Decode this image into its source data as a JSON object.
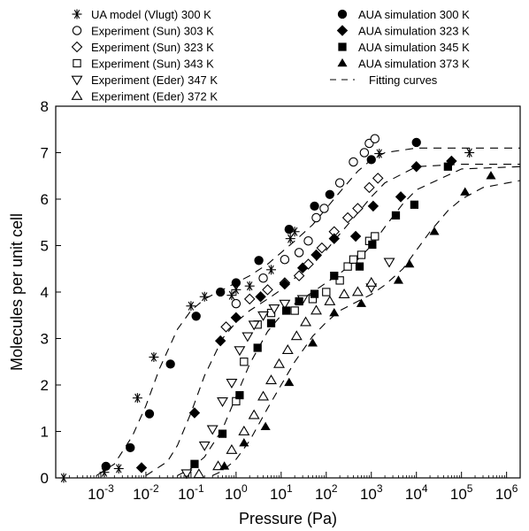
{
  "chart_data": {
    "type": "scatter",
    "xlabel": "Pressure (Pa)",
    "ylabel": "Molecules per unit cell",
    "xscale": "log",
    "xlim": [
      0.0001,
      2000000
    ],
    "ylim": [
      0,
      8
    ],
    "x_ticks": [
      {
        "value": 0.001,
        "base": "10",
        "exp": "-3"
      },
      {
        "value": 0.01,
        "base": "10",
        "exp": "-2"
      },
      {
        "value": 0.1,
        "base": "10",
        "exp": "-1"
      },
      {
        "value": 1,
        "base": "10",
        "exp": "0"
      },
      {
        "value": 10,
        "base": "10",
        "exp": "1"
      },
      {
        "value": 100,
        "base": "10",
        "exp": "2"
      },
      {
        "value": 1000,
        "base": "10",
        "exp": "3"
      },
      {
        "value": 10000,
        "base": "10",
        "exp": "4"
      },
      {
        "value": 100000,
        "base": "10",
        "exp": "5"
      },
      {
        "value": 1000000,
        "base": "10",
        "exp": "6"
      }
    ],
    "y_ticks": [
      0,
      1,
      2,
      3,
      4,
      5,
      6,
      7,
      8
    ],
    "grid": false,
    "legend_position": "top",
    "series": [
      {
        "name": "UA model (Vlugt) 300 K",
        "marker": "asterisk",
        "x": [
          0.00015,
          0.0012,
          0.0025,
          0.0065,
          0.015,
          0.1,
          0.2,
          0.8,
          1.0,
          2.0,
          6.0,
          16,
          20,
          1500,
          150000
        ],
        "y": [
          0.0,
          0.12,
          0.2,
          1.72,
          2.6,
          3.7,
          3.9,
          3.93,
          4.05,
          4.13,
          4.48,
          5.15,
          5.3,
          6.98,
          7.0
        ]
      },
      {
        "name": "Experiment (Sun) 303 K",
        "marker": "circle-open",
        "x": [
          1.0,
          4.0,
          12,
          25,
          40,
          60,
          90,
          200,
          400,
          700,
          900,
          1200
        ],
        "y": [
          3.75,
          4.3,
          4.7,
          4.85,
          5.1,
          5.6,
          5.8,
          6.35,
          6.8,
          7.0,
          7.2,
          7.3
        ]
      },
      {
        "name": "Experiment (Sun) 323 K",
        "marker": "diamond-open",
        "x": [
          0.6,
          2.0,
          5.0,
          12,
          25,
          40,
          80,
          150,
          300,
          500,
          900,
          1400
        ],
        "y": [
          3.25,
          3.85,
          4.05,
          4.2,
          4.35,
          4.6,
          4.95,
          5.3,
          5.6,
          5.8,
          6.25,
          6.45
        ]
      },
      {
        "name": "Experiment (Sun) 343 K",
        "marker": "square-open",
        "x": [
          1.0,
          1.5,
          3.0,
          6.0,
          20,
          50,
          100,
          200,
          300,
          400,
          600,
          900,
          1200
        ],
        "y": [
          1.65,
          2.5,
          3.3,
          3.55,
          3.6,
          3.85,
          4.0,
          4.25,
          4.55,
          4.7,
          4.8,
          5.1,
          5.2
        ]
      },
      {
        "name": "Experiment (Eder) 347 K",
        "marker": "triangle-down-open",
        "x": [
          0.08,
          0.2,
          0.3,
          0.5,
          0.8,
          1.2,
          1.8,
          2.5,
          4.0,
          7.0,
          12,
          30,
          1000,
          2500
        ],
        "y": [
          0.1,
          0.7,
          1.05,
          1.65,
          2.05,
          2.75,
          3.05,
          3.3,
          3.5,
          3.65,
          3.75,
          3.85,
          4.1,
          4.65
        ]
      },
      {
        "name": "Experiment (Eder) 372 K",
        "marker": "triangle-up-open",
        "x": [
          0.15,
          0.4,
          0.8,
          1.5,
          2.5,
          4.0,
          6.0,
          9.0,
          14,
          22,
          35,
          60,
          120,
          250,
          500,
          1000
        ],
        "y": [
          0.08,
          0.25,
          0.6,
          1.0,
          1.35,
          1.75,
          2.1,
          2.45,
          2.75,
          3.05,
          3.35,
          3.6,
          3.8,
          3.95,
          4.0,
          4.2
        ]
      },
      {
        "name": "AUA simulation 300 K",
        "marker": "circle-filled",
        "x": [
          0.0013,
          0.0045,
          0.012,
          0.035,
          0.13,
          0.45,
          1.0,
          3.2,
          15,
          55,
          120,
          1000,
          10000
        ],
        "y": [
          0.25,
          0.65,
          1.38,
          2.45,
          3.48,
          4.0,
          4.2,
          4.68,
          5.35,
          5.85,
          6.1,
          6.85,
          7.22
        ]
      },
      {
        "name": "AUA simulation 323 K",
        "marker": "diamond-filled",
        "x": [
          0.008,
          0.12,
          0.45,
          1.0,
          3.5,
          12,
          30,
          60,
          150,
          450,
          1100,
          4500,
          10000,
          60000
        ],
        "y": [
          0.22,
          1.4,
          2.95,
          3.45,
          3.9,
          4.17,
          4.52,
          4.8,
          5.15,
          5.2,
          5.85,
          6.05,
          6.7,
          6.82
        ]
      },
      {
        "name": "AUA simulation 345 K",
        "marker": "square-filled",
        "x": [
          0.12,
          0.5,
          1.2,
          3.0,
          6.0,
          13,
          25,
          55,
          150,
          550,
          1050,
          3500,
          9000,
          50000
        ],
        "y": [
          0.3,
          0.95,
          1.78,
          2.8,
          3.33,
          3.6,
          3.8,
          3.96,
          4.35,
          4.55,
          5.02,
          5.65,
          5.88,
          6.7
        ]
      },
      {
        "name": "AUA simulation 373 K",
        "marker": "triangle-up-filled",
        "x": [
          0.55,
          1.5,
          4.5,
          15,
          50,
          150,
          600,
          4000,
          7000,
          25000,
          120000,
          450000
        ],
        "y": [
          0.25,
          0.75,
          1.1,
          2.05,
          2.9,
          3.55,
          3.75,
          4.25,
          4.6,
          5.3,
          6.15,
          6.5
        ]
      },
      {
        "name": "Fitting curves",
        "marker": "dashed-line",
        "curves": [
          {
            "x": [
              0.0008,
              0.002,
              0.005,
              0.01,
              0.02,
              0.05,
              0.1,
              0.2,
              0.5,
              1,
              2,
              5,
              10,
              20,
              50,
              100,
              200,
              500,
              1000,
              2000,
              10000,
              100000,
              2000000
            ],
            "y": [
              0.05,
              0.3,
              0.9,
              1.55,
              2.35,
              3.2,
              3.6,
              3.85,
              4.05,
              4.2,
              4.35,
              4.6,
              4.85,
              5.1,
              5.45,
              5.8,
              6.15,
              6.6,
              6.85,
              7.0,
              7.1,
              7.1,
              7.1
            ]
          },
          {
            "x": [
              0.01,
              0.03,
              0.05,
              0.1,
              0.2,
              0.5,
              1,
              2,
              5,
              10,
              20,
              50,
              100,
              200,
              500,
              1000,
              2000,
              10000,
              100000,
              2000000
            ],
            "y": [
              0.05,
              0.35,
              0.7,
              1.4,
              2.2,
              3.0,
              3.35,
              3.6,
              3.85,
              4.05,
              4.3,
              4.6,
              4.9,
              5.25,
              5.7,
              6.05,
              6.35,
              6.7,
              6.75,
              6.75
            ]
          },
          {
            "x": [
              0.05,
              0.1,
              0.2,
              0.5,
              1,
              2,
              5,
              10,
              20,
              50,
              100,
              200,
              500,
              1000,
              2000,
              5000,
              10000,
              100000,
              2000000
            ],
            "y": [
              0.05,
              0.2,
              0.45,
              1.05,
              1.75,
              2.45,
              3.15,
              3.5,
              3.75,
              4.0,
              4.2,
              4.4,
              4.7,
              5.0,
              5.4,
              5.9,
              6.2,
              6.65,
              6.7
            ]
          },
          {
            "x": [
              0.3,
              0.5,
              1,
              2,
              5,
              10,
              20,
              50,
              100,
              200,
              500,
              1000,
              2000,
              5000,
              10000,
              20000,
              50000,
              100000,
              300000,
              2000000
            ],
            "y": [
              0.05,
              0.15,
              0.4,
              0.8,
              1.5,
              2.0,
              2.5,
              3.05,
              3.35,
              3.6,
              3.8,
              3.95,
              4.15,
              4.5,
              4.9,
              5.3,
              5.75,
              6.0,
              6.25,
              6.4
            ]
          }
        ]
      }
    ]
  }
}
